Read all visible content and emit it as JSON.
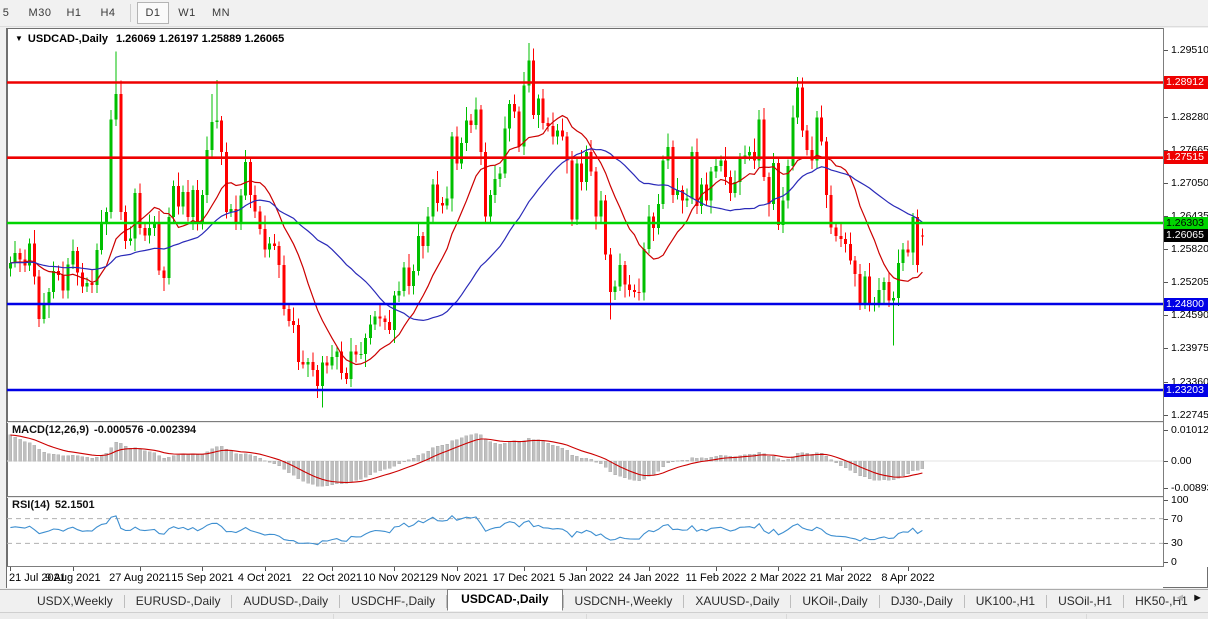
{
  "toolbar": {
    "periods": [
      "5",
      "M30",
      "H1",
      "H4",
      "D1",
      "W1",
      "MN"
    ],
    "active": "D1",
    "divider_before": "D1"
  },
  "window": {
    "dropdown_icon": "▼",
    "title": "USDCAD-,Daily",
    "ohlc": "1.26069 1.26197 1.25889 1.26065"
  },
  "macd": {
    "name": "MACD(12,26,9)",
    "values": "-0.000576 -0.002394",
    "axis": [
      "0.010127",
      "0.00",
      "-0.008937"
    ]
  },
  "rsi": {
    "name": "RSI(14)",
    "value": "52.1501",
    "axis": [
      "100",
      "70",
      "30",
      "0"
    ],
    "levels": [
      70,
      30
    ]
  },
  "tabs": {
    "items": [
      "USDX,Weekly",
      "EURUSD-,Daily",
      "AUDUSD-,Daily",
      "USDCHF-,Daily",
      "USDCAD-,Daily",
      "USDCNH-,Weekly",
      "XAUUSD-,Daily",
      "UKOil-,Daily",
      "DJ30-,Daily",
      "UK100-,H1",
      "USOil-,H1",
      "HK50-,H1"
    ],
    "active": "USDCAD-,Daily",
    "scroll_left_icon": "◄",
    "scroll_right_icon": "►"
  },
  "chart_data": {
    "type": "candlestick",
    "symbol": "USDCAD-",
    "timeframe": "Daily",
    "current_bar": {
      "open": 1.26069,
      "high": 1.26197,
      "low": 1.25889,
      "close": 1.26065
    },
    "ylim": [
      1.22628,
      1.29923
    ],
    "y_ticks": [
      "1.29510",
      "1.28895",
      "1.28280",
      "1.27665",
      "1.27050",
      "1.26435",
      "1.25820",
      "1.25205",
      "1.24590",
      "1.23975",
      "1.23360",
      "1.22745"
    ],
    "y_tick_step": 0.00615,
    "x_ticks": [
      {
        "i": 0,
        "label": "21 Jul 2021"
      },
      {
        "i": 13,
        "label": "9 Aug 2021"
      },
      {
        "i": 27,
        "label": "27 Aug 2021"
      },
      {
        "i": 40,
        "label": "15 Sep 2021"
      },
      {
        "i": 53,
        "label": "4 Oct 2021"
      },
      {
        "i": 67,
        "label": "22 Oct 2021"
      },
      {
        "i": 80,
        "label": "10 Nov 2021"
      },
      {
        "i": 93,
        "label": "29 Nov 2021"
      },
      {
        "i": 107,
        "label": "17 Dec 2021"
      },
      {
        "i": 120,
        "label": "5 Jan 2022"
      },
      {
        "i": 133,
        "label": "24 Jan 2022"
      },
      {
        "i": 147,
        "label": "11 Feb 2022"
      },
      {
        "i": 160,
        "label": "2 Mar 2022"
      },
      {
        "i": 173,
        "label": "21 Mar 2022"
      },
      {
        "i": 187,
        "label": "8 Apr 2022"
      }
    ],
    "hlines": [
      {
        "price": 1.28912,
        "label": "1.28912",
        "color": "#ee0000",
        "text": "#ffffff"
      },
      {
        "price": 1.27515,
        "label": "1.27515",
        "color": "#ee0000",
        "text": "#ffffff"
      },
      {
        "price": 1.26303,
        "label": "1.26303",
        "color": "#00d400",
        "text": "#000000"
      },
      {
        "price": 1.248,
        "label": "1.24800",
        "color": "#0000e6",
        "text": "#ffffff"
      },
      {
        "price": 1.23203,
        "label": "1.23203",
        "color": "#0000e6",
        "text": "#ffffff"
      }
    ],
    "current_price_label": {
      "price": 1.26065,
      "label": "1.26065",
      "bg": "#000000",
      "text": "#ffffff"
    },
    "colors": {
      "up": "#00bf00",
      "down": "#ff0000",
      "ma_fast": "#cc0000",
      "ma_slow": "#2a2ab8",
      "macd_hist": "#bfbfbf",
      "macd_signal": "#cc0000",
      "rsi_line": "#3e8fd0",
      "rsi_levels": "#b0b0b0"
    },
    "moving_averages": [
      {
        "name": "fast-red",
        "color": "#cc0000"
      },
      {
        "name": "slow-blue",
        "color": "#2a2ab8"
      }
    ],
    "macd_axis": {
      "ticks": [
        0.010127,
        0.0,
        -0.008937
      ]
    },
    "rsi_axis": {
      "ticks": [
        100,
        70,
        30,
        0
      ]
    },
    "ohlc": [
      [
        1.2546,
        1.2568,
        1.2531,
        1.2556
      ],
      [
        1.2556,
        1.2597,
        1.2548,
        1.2575
      ],
      [
        1.2575,
        1.2583,
        1.2539,
        1.2563
      ],
      [
        1.2563,
        1.2581,
        1.2539,
        1.2551
      ],
      [
        1.2551,
        1.2602,
        1.2541,
        1.2592
      ],
      [
        1.2592,
        1.2617,
        1.2516,
        1.2531
      ],
      [
        1.2531,
        1.2543,
        1.2437,
        1.2452
      ],
      [
        1.2452,
        1.25,
        1.2444,
        1.2478
      ],
      [
        1.2478,
        1.251,
        1.2454,
        1.2502
      ],
      [
        1.2502,
        1.2559,
        1.249,
        1.2541
      ],
      [
        1.2541,
        1.2551,
        1.2524,
        1.2534
      ],
      [
        1.2534,
        1.2559,
        1.249,
        1.2505
      ],
      [
        1.2505,
        1.2565,
        1.249,
        1.2553
      ],
      [
        1.2553,
        1.26,
        1.2545,
        1.2578
      ],
      [
        1.2578,
        1.2586,
        1.2514,
        1.2538
      ],
      [
        1.2538,
        1.2556,
        1.25,
        1.2512
      ],
      [
        1.2512,
        1.2529,
        1.2502,
        1.2519
      ],
      [
        1.2519,
        1.2544,
        1.25,
        1.2515
      ],
      [
        1.2515,
        1.2592,
        1.25,
        1.258
      ],
      [
        1.258,
        1.2654,
        1.2572,
        1.2632
      ],
      [
        1.2632,
        1.2659,
        1.2608,
        1.2651
      ],
      [
        1.2651,
        1.284,
        1.2639,
        1.2822
      ],
      [
        1.2822,
        1.2949,
        1.281,
        1.287
      ],
      [
        1.287,
        1.2895,
        1.2636,
        1.2651
      ],
      [
        1.2651,
        1.2663,
        1.2582,
        1.2597
      ],
      [
        1.2597,
        1.2624,
        1.2589,
        1.2602
      ],
      [
        1.2602,
        1.2694,
        1.2578,
        1.2686
      ],
      [
        1.2686,
        1.2704,
        1.2609,
        1.2621
      ],
      [
        1.2621,
        1.2631,
        1.2597,
        1.2607
      ],
      [
        1.2607,
        1.2646,
        1.2592,
        1.2621
      ],
      [
        1.2621,
        1.2643,
        1.2606,
        1.2631
      ],
      [
        1.2631,
        1.2653,
        1.2534,
        1.2542
      ],
      [
        1.2542,
        1.255,
        1.2504,
        1.2528
      ],
      [
        1.2528,
        1.2659,
        1.2516,
        1.2641
      ],
      [
        1.2641,
        1.2709,
        1.2631,
        1.2699
      ],
      [
        1.2699,
        1.2724,
        1.2646,
        1.2661
      ],
      [
        1.2661,
        1.27,
        1.2646,
        1.2688
      ],
      [
        1.2688,
        1.271,
        1.2633,
        1.2641
      ],
      [
        1.2641,
        1.27,
        1.2617,
        1.2692
      ],
      [
        1.2692,
        1.271,
        1.2616,
        1.2628
      ],
      [
        1.2628,
        1.2692,
        1.2618,
        1.2682
      ],
      [
        1.2682,
        1.2791,
        1.2667,
        1.2766
      ],
      [
        1.2766,
        1.287,
        1.2754,
        1.2818
      ],
      [
        1.2818,
        1.2896,
        1.2806,
        1.2821
      ],
      [
        1.2821,
        1.2829,
        1.2738,
        1.2762
      ],
      [
        1.2762,
        1.278,
        1.2639,
        1.2651
      ],
      [
        1.2651,
        1.2666,
        1.2641,
        1.2656
      ],
      [
        1.2656,
        1.2681,
        1.2617,
        1.2632
      ],
      [
        1.2632,
        1.2693,
        1.2617,
        1.2681
      ],
      [
        1.2681,
        1.2766,
        1.2673,
        1.2744
      ],
      [
        1.2744,
        1.2752,
        1.2658,
        1.2682
      ],
      [
        1.2682,
        1.27,
        1.264,
        1.2652
      ],
      [
        1.2652,
        1.2662,
        1.2609,
        1.2619
      ],
      [
        1.2619,
        1.2644,
        1.2566,
        1.2581
      ],
      [
        1.2581,
        1.2604,
        1.2566,
        1.2592
      ],
      [
        1.2592,
        1.261,
        1.258,
        1.2588
      ],
      [
        1.2588,
        1.2596,
        1.2528,
        1.2552
      ],
      [
        1.2552,
        1.257,
        1.2459,
        1.2471
      ],
      [
        1.2471,
        1.2481,
        1.2438,
        1.2448
      ],
      [
        1.2448,
        1.2473,
        1.2426,
        1.2441
      ],
      [
        1.2441,
        1.2453,
        1.2357,
        1.2372
      ],
      [
        1.2372,
        1.2394,
        1.236,
        1.2368
      ],
      [
        1.2368,
        1.238,
        1.2344,
        1.2372
      ],
      [
        1.2372,
        1.239,
        1.2345,
        1.2357
      ],
      [
        1.2357,
        1.2367,
        1.2305,
        1.2328
      ],
      [
        1.2328,
        1.2383,
        1.2288,
        1.2371
      ],
      [
        1.2371,
        1.2383,
        1.2351,
        1.2366
      ],
      [
        1.2366,
        1.2404,
        1.2358,
        1.2382
      ],
      [
        1.2382,
        1.24,
        1.2358,
        1.2392
      ],
      [
        1.2392,
        1.241,
        1.234,
        1.2352
      ],
      [
        1.2352,
        1.2362,
        1.2331,
        1.2341
      ],
      [
        1.2341,
        1.2417,
        1.2326,
        1.2392
      ],
      [
        1.2392,
        1.2404,
        1.2371,
        1.2386
      ],
      [
        1.2386,
        1.2409,
        1.2378,
        1.2387
      ],
      [
        1.2387,
        1.2425,
        1.2363,
        1.2417
      ],
      [
        1.2417,
        1.246,
        1.2405,
        1.2442
      ],
      [
        1.2442,
        1.2467,
        1.2432,
        1.2457
      ],
      [
        1.2457,
        1.2478,
        1.2438,
        1.2453
      ],
      [
        1.2453,
        1.2459,
        1.2432,
        1.2447
      ],
      [
        1.2447,
        1.2469,
        1.2424,
        1.2432
      ],
      [
        1.2432,
        1.2504,
        1.2408,
        1.2496
      ],
      [
        1.2496,
        1.2522,
        1.2484,
        1.2504
      ],
      [
        1.2504,
        1.2558,
        1.2494,
        1.2548
      ],
      [
        1.2548,
        1.2573,
        1.2498,
        1.2513
      ],
      [
        1.2513,
        1.2553,
        1.2498,
        1.2541
      ],
      [
        1.2541,
        1.2628,
        1.2533,
        1.2606
      ],
      [
        1.2606,
        1.2614,
        1.2564,
        1.2588
      ],
      [
        1.2588,
        1.266,
        1.2576,
        1.2642
      ],
      [
        1.2642,
        1.2712,
        1.2632,
        1.2702
      ],
      [
        1.2702,
        1.2727,
        1.2652,
        1.2667
      ],
      [
        1.2667,
        1.2679,
        1.2648,
        1.2663
      ],
      [
        1.2663,
        1.2698,
        1.2655,
        1.2676
      ],
      [
        1.2676,
        1.2799,
        1.2652,
        1.2791
      ],
      [
        1.2791,
        1.2809,
        1.2729,
        1.2741
      ],
      [
        1.2741,
        1.2789,
        1.2731,
        1.2779
      ],
      [
        1.2779,
        1.2846,
        1.2764,
        1.2821
      ],
      [
        1.2821,
        1.2833,
        1.2797,
        1.2812
      ],
      [
        1.2812,
        1.2863,
        1.2804,
        1.2841
      ],
      [
        1.2841,
        1.2849,
        1.2738,
        1.2762
      ],
      [
        1.2762,
        1.278,
        1.263,
        1.2642
      ],
      [
        1.2642,
        1.2692,
        1.2632,
        1.2682
      ],
      [
        1.2682,
        1.2737,
        1.2667,
        1.2712
      ],
      [
        1.2712,
        1.2734,
        1.2697,
        1.2722
      ],
      [
        1.2722,
        1.2828,
        1.2714,
        1.2806
      ],
      [
        1.2806,
        1.2859,
        1.2782,
        1.2851
      ],
      [
        1.2851,
        1.2869,
        1.2825,
        1.2837
      ],
      [
        1.2837,
        1.2847,
        1.2762,
        1.2772
      ],
      [
        1.2772,
        1.2911,
        1.2757,
        1.2886
      ],
      [
        1.2886,
        1.2964,
        1.2873,
        1.2932
      ],
      [
        1.2932,
        1.2954,
        1.2823,
        1.2831
      ],
      [
        1.2831,
        1.2869,
        1.2807,
        1.2861
      ],
      [
        1.2861,
        1.2879,
        1.2804,
        1.2816
      ],
      [
        1.2816,
        1.2826,
        1.28,
        1.281
      ],
      [
        1.281,
        1.2835,
        1.2776,
        1.2791
      ],
      [
        1.2791,
        1.2814,
        1.2776,
        1.2802
      ],
      [
        1.2802,
        1.2824,
        1.2783,
        1.2791
      ],
      [
        1.2791,
        1.2799,
        1.2722,
        1.2746
      ],
      [
        1.2746,
        1.2764,
        1.2625,
        1.2637
      ],
      [
        1.2637,
        1.2751,
        1.2627,
        1.2741
      ],
      [
        1.2741,
        1.2766,
        1.2691,
        1.2706
      ],
      [
        1.2706,
        1.2774,
        1.2691,
        1.2762
      ],
      [
        1.2762,
        1.2784,
        1.2718,
        1.2726
      ],
      [
        1.2726,
        1.2734,
        1.2618,
        1.2642
      ],
      [
        1.2642,
        1.269,
        1.263,
        1.2672
      ],
      [
        1.2672,
        1.2682,
        1.2562,
        1.2572
      ],
      [
        1.2572,
        1.2584,
        1.2451,
        1.2502
      ],
      [
        1.2502,
        1.2524,
        1.2487,
        1.2512
      ],
      [
        1.2512,
        1.2574,
        1.2504,
        1.2552
      ],
      [
        1.2552,
        1.256,
        1.2492,
        1.2516
      ],
      [
        1.2516,
        1.2534,
        1.2494,
        1.2506
      ],
      [
        1.2506,
        1.2516,
        1.2492,
        1.2502
      ],
      [
        1.2502,
        1.2527,
        1.2486,
        1.2501
      ],
      [
        1.2501,
        1.2594,
        1.2486,
        1.2582
      ],
      [
        1.2582,
        1.2664,
        1.2574,
        1.2642
      ],
      [
        1.2642,
        1.265,
        1.2597,
        1.2621
      ],
      [
        1.2621,
        1.2684,
        1.2609,
        1.2666
      ],
      [
        1.2666,
        1.2756,
        1.2656,
        1.2746
      ],
      [
        1.2746,
        1.2796,
        1.2731,
        1.2771
      ],
      [
        1.2771,
        1.2783,
        1.2667,
        1.2682
      ],
      [
        1.2682,
        1.2714,
        1.2674,
        1.2692
      ],
      [
        1.2692,
        1.27,
        1.2648,
        1.2672
      ],
      [
        1.2672,
        1.2694,
        1.266,
        1.2676
      ],
      [
        1.2676,
        1.2772,
        1.2666,
        1.2762
      ],
      [
        1.2762,
        1.2787,
        1.2647,
        1.2662
      ],
      [
        1.2662,
        1.2714,
        1.2647,
        1.2702
      ],
      [
        1.2702,
        1.2724,
        1.2664,
        1.2672
      ],
      [
        1.2672,
        1.2734,
        1.2648,
        1.2726
      ],
      [
        1.2726,
        1.2754,
        1.2714,
        1.2736
      ],
      [
        1.2736,
        1.2756,
        1.2726,
        1.2746
      ],
      [
        1.2746,
        1.2771,
        1.2701,
        1.2716
      ],
      [
        1.2716,
        1.2728,
        1.2671,
        1.2686
      ],
      [
        1.2686,
        1.2728,
        1.2678,
        1.2706
      ],
      [
        1.2706,
        1.276,
        1.2682,
        1.2752
      ],
      [
        1.2752,
        1.2774,
        1.274,
        1.2756
      ],
      [
        1.2756,
        1.2772,
        1.2746,
        1.2762
      ],
      [
        1.2762,
        1.2787,
        1.2731,
        1.2746
      ],
      [
        1.2746,
        1.284,
        1.2734,
        1.2822
      ],
      [
        1.2822,
        1.2844,
        1.2708,
        1.2716
      ],
      [
        1.2716,
        1.2724,
        1.2642,
        1.2666
      ],
      [
        1.2666,
        1.276,
        1.2654,
        1.2742
      ],
      [
        1.2742,
        1.2752,
        1.2617,
        1.2627
      ],
      [
        1.2627,
        1.2697,
        1.2612,
        1.2672
      ],
      [
        1.2672,
        1.2748,
        1.2657,
        1.2736
      ],
      [
        1.2736,
        1.2848,
        1.2728,
        1.2826
      ],
      [
        1.2826,
        1.2901,
        1.2814,
        1.2882
      ],
      [
        1.2882,
        1.29,
        1.279,
        1.2802
      ],
      [
        1.2802,
        1.2812,
        1.2756,
        1.2766
      ],
      [
        1.2766,
        1.2791,
        1.2731,
        1.2746
      ],
      [
        1.2746,
        1.2838,
        1.2731,
        1.2826
      ],
      [
        1.2826,
        1.2848,
        1.2774,
        1.2782
      ],
      [
        1.2782,
        1.279,
        1.2658,
        1.2682
      ],
      [
        1.2682,
        1.27,
        1.261,
        1.2622
      ],
      [
        1.2622,
        1.2632,
        1.2596,
        1.2606
      ],
      [
        1.2606,
        1.2631,
        1.2586,
        1.2601
      ],
      [
        1.2601,
        1.2613,
        1.2576,
        1.2591
      ],
      [
        1.2591,
        1.2613,
        1.2553,
        1.2561
      ],
      [
        1.2561,
        1.2569,
        1.2512,
        1.2536
      ],
      [
        1.2536,
        1.2554,
        1.2469,
        1.2481
      ],
      [
        1.2481,
        1.2541,
        1.2471,
        1.2531
      ],
      [
        1.2531,
        1.2556,
        1.2466,
        1.2481
      ],
      [
        1.2481,
        1.2493,
        1.2466,
        1.2481
      ],
      [
        1.2481,
        1.2528,
        1.2473,
        1.2506
      ],
      [
        1.2506,
        1.2529,
        1.2482,
        1.2521
      ],
      [
        1.2521,
        1.2539,
        1.2474,
        1.2486
      ],
      [
        1.2486,
        1.2503,
        1.2403,
        1.2491
      ],
      [
        1.2491,
        1.2581,
        1.2476,
        1.2556
      ],
      [
        1.2556,
        1.2593,
        1.2541,
        1.2581
      ],
      [
        1.2581,
        1.2598,
        1.2568,
        1.2576
      ],
      [
        1.2576,
        1.2649,
        1.2552,
        1.2641
      ],
      [
        1.2641,
        1.2655,
        1.2538,
        1.2552
      ],
      [
        1.26069,
        1.26197,
        1.25889,
        1.26065
      ]
    ]
  }
}
